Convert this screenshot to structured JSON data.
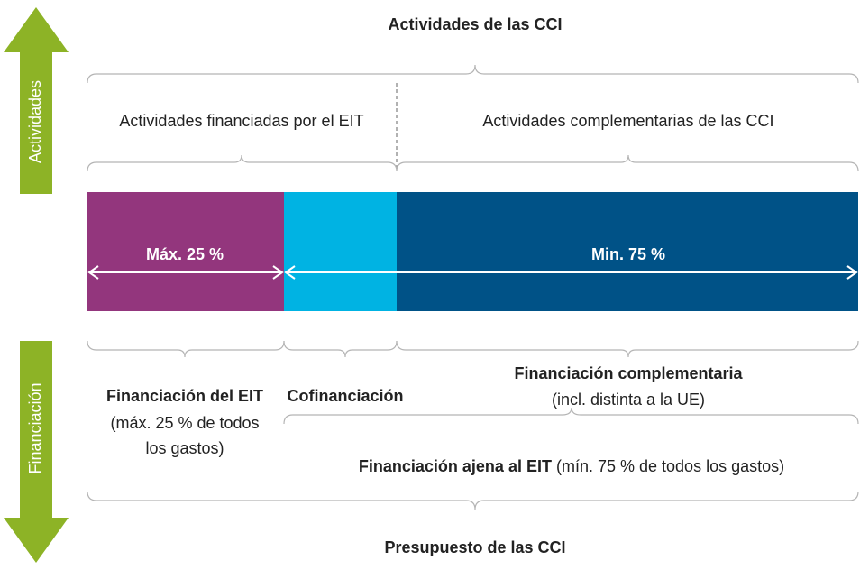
{
  "top_title": "Actividades de las CCI",
  "side_labels": {
    "top": "Actividades",
    "bottom": "Financiación"
  },
  "activities": {
    "funded": "Actividades financiadas por el EIT",
    "complementary": "Actividades complementarias de las CCI"
  },
  "bar_labels": {
    "max": "Máx. 25 %",
    "min": "Min. 75 %"
  },
  "funding": {
    "eit": {
      "title": "Financiación del EIT",
      "line1": "(máx. 25 % de todos",
      "line2": "los gastos)"
    },
    "cofunding": {
      "title": "Cofinanciación"
    },
    "complementary": {
      "title": "Financiación complementaria",
      "note": "(incl. distinta a la UE)"
    },
    "non_eit": {
      "title": "Financiación ajena al EIT",
      "note": "(mín. 75 % de todos los gastos)"
    }
  },
  "bottom_title": "Presupuesto de las CCI"
}
